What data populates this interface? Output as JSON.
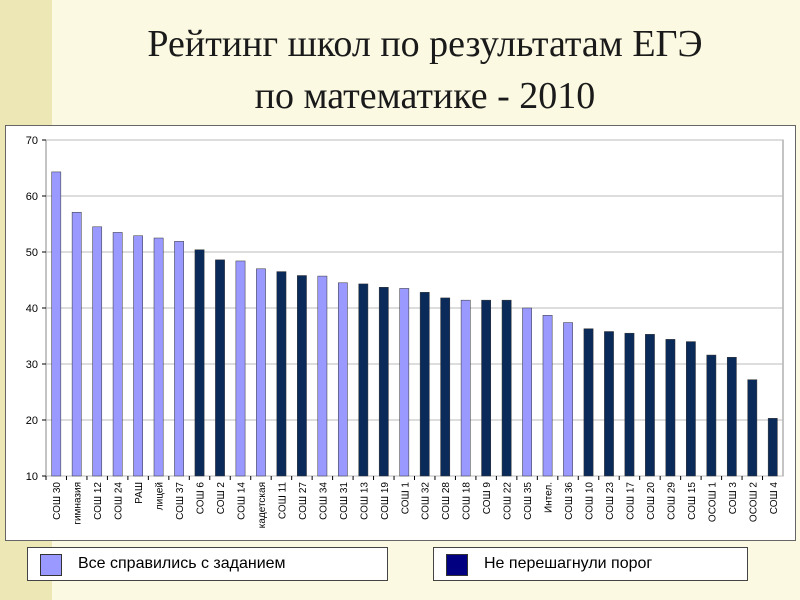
{
  "title_line1": "Рейтинг школ по результатам ЕГЭ",
  "title_line2": "по математике - 2010",
  "legend": [
    {
      "label": "Все справились с заданием",
      "color": "#9999ff"
    },
    {
      "label": "Не перешагнули порог",
      "color": "#000080"
    }
  ],
  "chart_data": {
    "type": "bar",
    "ylim": [
      10,
      70
    ],
    "yticks": [
      10,
      20,
      30,
      40,
      50,
      60,
      70
    ],
    "grid": true,
    "categories": [
      "СОШ 30",
      "гимназия",
      "СОШ 12",
      "СОШ 24",
      "РАШ",
      "лицей",
      "СОШ 37",
      "СОШ 6",
      "СОШ 2",
      "СОШ 14",
      "кадетская",
      "СОШ 11",
      "СОШ 27",
      "СОШ 34",
      "СОШ 31",
      "СОШ 13",
      "СОШ 19",
      "СОШ 1",
      "СОШ 32",
      "СОШ 28",
      "СОШ 18",
      "СОШ 9",
      "СОШ 22",
      "СОШ 35",
      "Интел.",
      "СОШ 36",
      "СОШ 10",
      "СОШ 23",
      "СОШ 17",
      "СОШ 20",
      "СОШ 29",
      "СОШ 15",
      "ОСОШ 1",
      "СОШ 3",
      "ОСОШ 2",
      "СОШ 4"
    ],
    "values": [
      64.3,
      57.1,
      54.5,
      53.5,
      52.9,
      52.5,
      51.9,
      50.4,
      48.6,
      48.4,
      47.0,
      46.5,
      45.8,
      45.7,
      44.5,
      44.3,
      43.7,
      43.5,
      42.8,
      41.8,
      41.4,
      41.4,
      41.4,
      40.0,
      38.7,
      37.4,
      36.3,
      35.8,
      35.5,
      35.3,
      34.4,
      34.0,
      31.6,
      31.2,
      27.2,
      20.3
    ],
    "group": [
      0,
      0,
      0,
      0,
      0,
      0,
      0,
      1,
      1,
      0,
      0,
      1,
      1,
      0,
      0,
      1,
      1,
      0,
      1,
      1,
      0,
      1,
      1,
      0,
      0,
      0,
      1,
      1,
      1,
      1,
      1,
      1,
      1,
      1,
      1,
      1
    ]
  }
}
